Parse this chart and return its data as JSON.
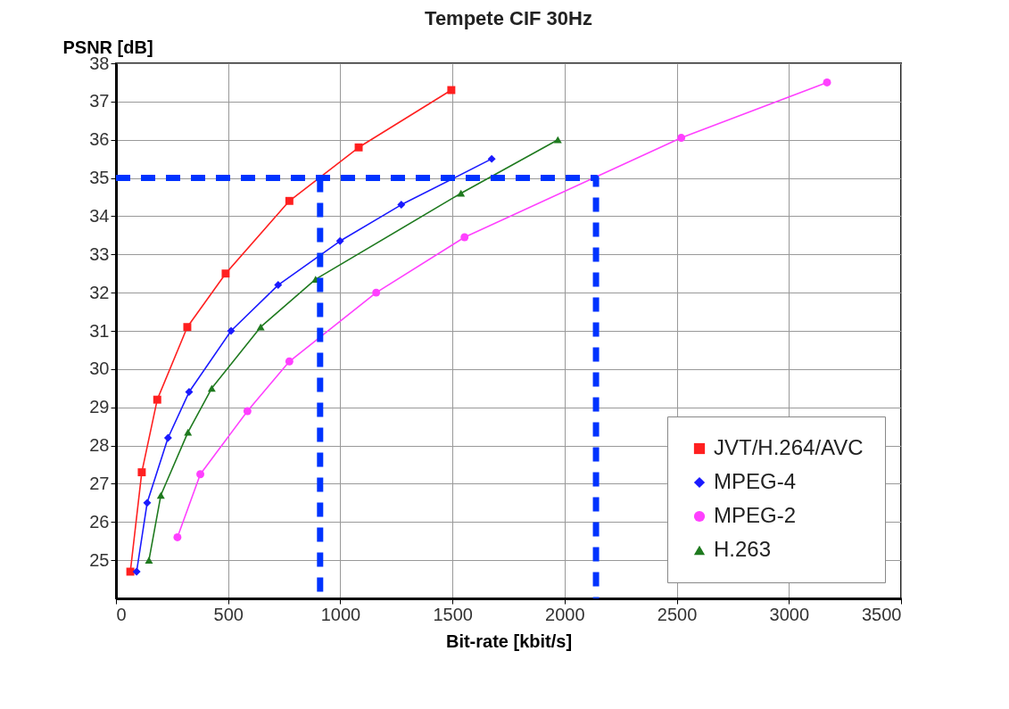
{
  "chart_data": {
    "type": "line",
    "title": "Tempete CIF 30Hz",
    "xlabel": "Bit-rate [kbit/s]",
    "ylabel": "PSNR [dB]",
    "xlim": [
      0,
      3500
    ],
    "xticks": [
      0,
      500,
      1000,
      1500,
      2000,
      2500,
      3000,
      3500
    ],
    "ylim": [
      24,
      38
    ],
    "yticks": [
      25,
      26,
      27,
      28,
      29,
      30,
      31,
      32,
      33,
      34,
      35,
      36,
      37,
      38
    ],
    "grid": true,
    "legend": "bottom right",
    "line_style": "solid",
    "series": [
      {
        "name": "JVT/H.264/AVC",
        "color": "#ff2020",
        "marker": "square",
        "x": [
          64,
          115,
          184,
          318,
          489,
          773,
          1082,
          1495
        ],
        "values": [
          24.7,
          27.3,
          29.2,
          31.1,
          32.5,
          34.4,
          35.8,
          37.3
        ]
      },
      {
        "name": "MPEG-4",
        "color": "#1a1aff",
        "marker": "diamond",
        "x": [
          92,
          139,
          232,
          326,
          513,
          723,
          999,
          1272,
          1675
        ],
        "values": [
          24.7,
          26.5,
          28.2,
          29.4,
          31.0,
          32.2,
          33.35,
          34.3,
          35.5
        ]
      },
      {
        "name": "MPEG-2",
        "color": "#ff40ff",
        "marker": "circle",
        "x": [
          274,
          376,
          586,
          773,
          1160,
          1554,
          2520,
          3170
        ],
        "values": [
          25.6,
          27.25,
          28.9,
          30.2,
          32.0,
          33.45,
          36.05,
          37.5
        ]
      },
      {
        "name": "H.263",
        "color": "#1f7a1f",
        "marker": "triangle",
        "x": [
          147,
          200,
          321,
          427,
          645,
          890,
          1538,
          1970
        ],
        "values": [
          25.0,
          26.7,
          28.35,
          29.5,
          31.1,
          32.35,
          34.6,
          36.0
        ]
      },
      {
        "color": "#0033ff",
        "marker": "none",
        "line_style": "dashed",
        "x": [
          0,
          2140,
          2140
        ],
        "values": [
          35,
          35,
          24
        ]
      },
      {
        "color": "#0033ff",
        "marker": "none",
        "line_style": "dashed",
        "x": [
          910,
          910
        ],
        "values": [
          35,
          24
        ]
      }
    ]
  }
}
